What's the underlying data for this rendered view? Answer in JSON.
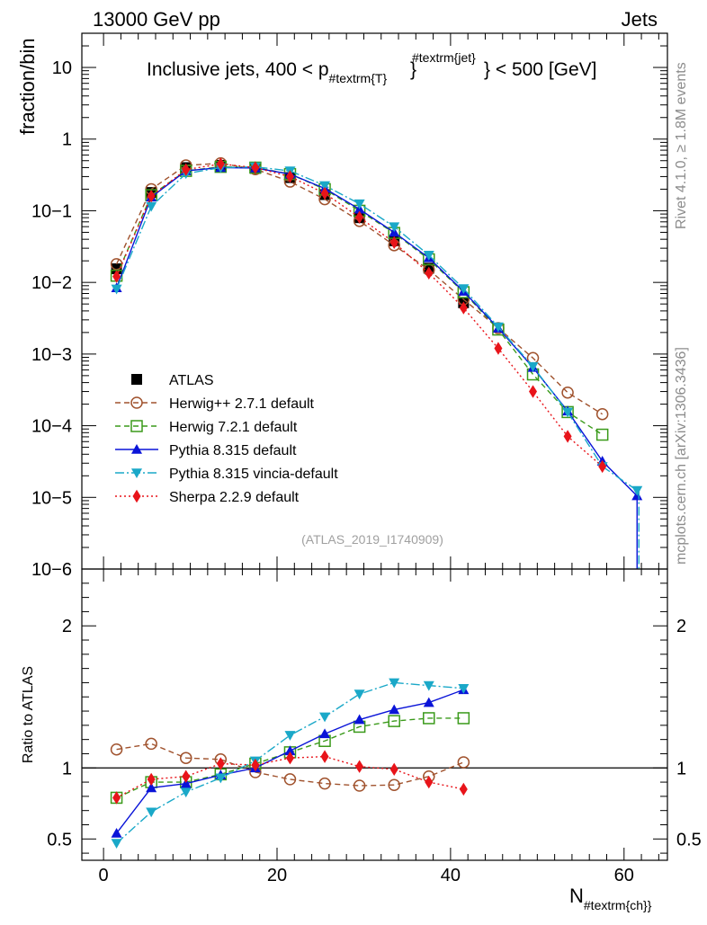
{
  "header": {
    "energy_label": "13000 GeV pp",
    "process_label": "Jets"
  },
  "side_labels": {
    "rivet": "Rivet 4.1.0, ≥ 1.8M events",
    "mcplots": "mcplots.cern.ch [arXiv:1306.3436]"
  },
  "chart_data": [
    {
      "type": "line",
      "panel": "main",
      "title_parts": {
        "prefix": "Inclusive jets, 400 < p",
        "sub": "#textrm{T}",
        "sup": "#textrm{jet}",
        "suffix": "} < 500 [GeV]"
      },
      "ylabel": "fraction/bin",
      "yscale": "log",
      "ylim": [
        1e-06,
        30
      ],
      "xlim": [
        -2.5,
        65
      ],
      "x_ticks": [
        "0",
        "20",
        "40",
        "60"
      ],
      "y_tick_labels": [
        "10",
        "1",
        "10−1",
        "10−2",
        "10−3",
        "10−4",
        "10−5",
        "10−6"
      ],
      "analysis_id": "(ATLAS_2019_I1740909)",
      "x": [
        1.5,
        5.5,
        9.5,
        13.5,
        17.5,
        21.5,
        25.5,
        29.5,
        33.5,
        37.5,
        41.5,
        45.5,
        49.5,
        53.5,
        57.5,
        61.5
      ],
      "series": [
        {
          "name": "ATLAS",
          "label": "ATLAS",
          "color": "#000000",
          "dash": "",
          "marker": "square-filled",
          "values": [
            0.0155,
            0.18,
            0.4,
            0.43,
            0.39,
            0.29,
            0.168,
            0.08,
            0.038,
            0.0158,
            0.0052,
            null,
            null,
            null,
            null,
            null
          ]
        },
        {
          "name": "herwigpp",
          "label": "Herwig++ 2.7.1 default",
          "color": "#a0522d",
          "dash": "6,4",
          "marker": "circle-open",
          "values": [
            0.018,
            0.2,
            0.43,
            0.46,
            0.38,
            0.255,
            0.145,
            0.072,
            0.033,
            0.015,
            0.0058,
            0.0023,
            0.00088,
            0.00029,
            0.000145,
            null
          ]
        },
        {
          "name": "herwig7",
          "label": "Herwig 7.2.1 default",
          "color": "#3a9a1a",
          "dash": "6,4",
          "marker": "square-open",
          "values": [
            0.0124,
            0.165,
            0.36,
            0.41,
            0.4,
            0.325,
            0.2,
            0.1,
            0.049,
            0.021,
            0.0073,
            0.0022,
            0.00052,
            0.000155,
            7.5e-05,
            null
          ]
        },
        {
          "name": "pythia",
          "label": "Pythia 8.315 default",
          "color": "#0a14d8",
          "dash": "",
          "marker": "triangle-up",
          "values": [
            0.0084,
            0.155,
            0.36,
            0.4,
            0.395,
            0.325,
            0.205,
            0.105,
            0.05,
            0.022,
            0.0075,
            0.0023,
            0.00065,
            0.00016,
            3.2e-05,
            1.05e-05
          ]
        },
        {
          "name": "vincia",
          "label": "Pythia 8.315 vincia-default",
          "color": "#1aa8c8",
          "dash": "10,3,2,3",
          "marker": "triangle-down",
          "values": [
            0.0081,
            0.115,
            0.33,
            0.4,
            0.41,
            0.36,
            0.225,
            0.125,
            0.06,
            0.024,
            0.0082,
            0.0024,
            0.00067,
            0.000155,
            2.7e-05,
            1.25e-05
          ]
        },
        {
          "name": "sherpa",
          "label": "Sherpa 2.2.9 default",
          "color": "#e8141a",
          "dash": "2,3",
          "marker": "diamond",
          "values": [
            0.0121,
            0.16,
            0.375,
            0.45,
            0.4,
            0.3,
            0.175,
            0.081,
            0.036,
            0.0135,
            0.0044,
            0.0012,
            0.0003,
            7.1e-05,
            2.7e-05,
            null
          ]
        }
      ]
    },
    {
      "type": "line",
      "panel": "ratio",
      "ylabel": "Ratio to ATLAS",
      "ylim": [
        0.35,
        2.4
      ],
      "xlabel_parts": {
        "main": "N",
        "sub": "#textrm{ch}}"
      },
      "y_tick_labels": [
        "2",
        "1",
        "0.5"
      ],
      "reference_value": 1,
      "x": [
        1.5,
        5.5,
        9.5,
        13.5,
        17.5,
        21.5,
        25.5,
        29.5,
        33.5,
        37.5,
        41.5
      ],
      "series": [
        {
          "name": "herwigpp",
          "values": [
            1.13,
            1.17,
            1.07,
            1.06,
            0.97,
            0.92,
            0.89,
            0.875,
            0.88,
            0.94,
            1.04
          ]
        },
        {
          "name": "herwig7",
          "values": [
            0.79,
            0.9,
            0.9,
            0.955,
            1.03,
            1.11,
            1.19,
            1.29,
            1.33,
            1.35,
            1.35
          ]
        },
        {
          "name": "pythia",
          "values": [
            0.54,
            0.86,
            0.89,
            0.95,
            1.0,
            1.12,
            1.24,
            1.34,
            1.41,
            1.46,
            1.55
          ]
        },
        {
          "name": "vincia",
          "values": [
            0.47,
            0.69,
            0.83,
            0.93,
            1.05,
            1.23,
            1.36,
            1.52,
            1.6,
            1.58,
            1.56
          ]
        },
        {
          "name": "sherpa",
          "values": [
            0.79,
            0.92,
            0.94,
            1.03,
            1.02,
            1.07,
            1.08,
            1.01,
            0.99,
            0.9,
            0.85
          ]
        }
      ]
    }
  ]
}
